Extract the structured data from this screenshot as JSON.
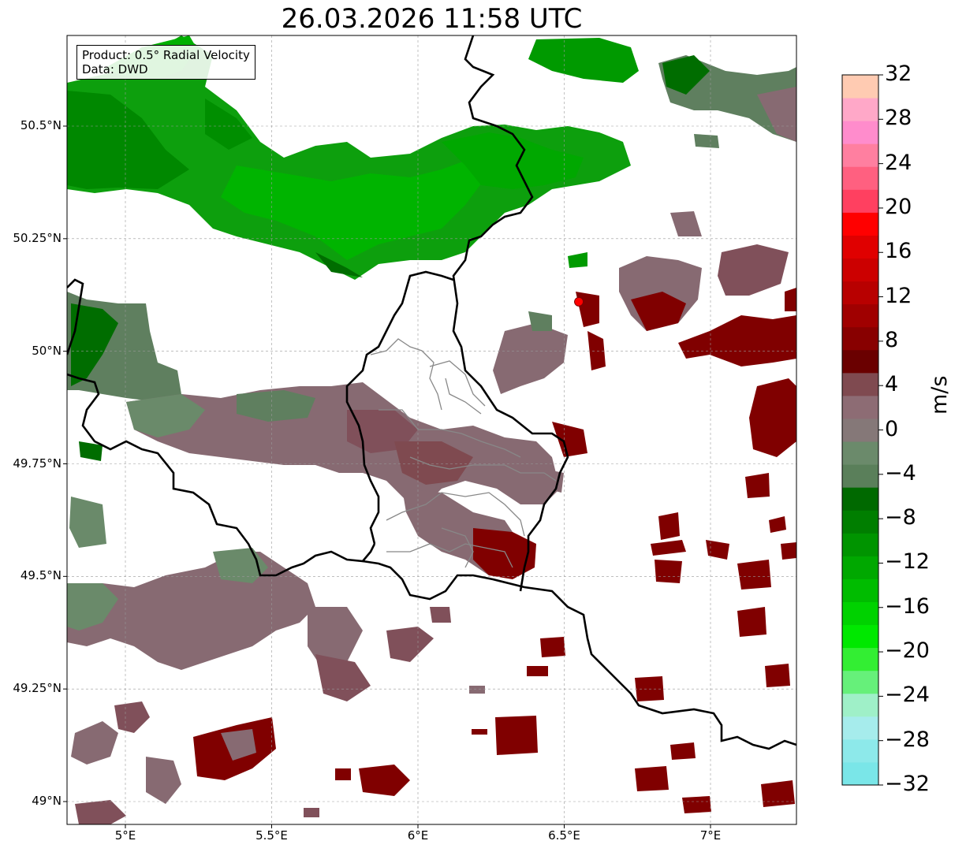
{
  "title": "26.03.2026 11:58 UTC",
  "info": {
    "product": "Product: 0.5° Radial Velocity",
    "data": "Data: DWD"
  },
  "lat_ticks": [
    {
      "label": "50.5°N",
      "value": 50.5
    },
    {
      "label": "50.25°N",
      "value": 50.25
    },
    {
      "label": "50°N",
      "value": 50.0
    },
    {
      "label": "49.75°N",
      "value": 49.75
    },
    {
      "label": "49.5°N",
      "value": 49.5
    },
    {
      "label": "49.25°N",
      "value": 49.25
    },
    {
      "label": "49°N",
      "value": 49.0
    }
  ],
  "lon_ticks": [
    {
      "label": "5°E",
      "value": 5.0
    },
    {
      "label": "5.5°E",
      "value": 5.5
    },
    {
      "label": "6°E",
      "value": 6.0
    },
    {
      "label": "6.5°E",
      "value": 6.5
    },
    {
      "label": "7°E",
      "value": 7.0
    }
  ],
  "extent": {
    "lon_min": 4.8,
    "lon_max": 7.3,
    "lat_min": 48.95,
    "lat_max": 50.7
  },
  "radar_site": {
    "lon": 6.55,
    "lat": 50.11,
    "color": "#ff0000"
  },
  "colorbar": {
    "unit": "m/s",
    "min": -32,
    "max": 32,
    "tick_labels": [
      "32",
      "28",
      "24",
      "20",
      "16",
      "12",
      "8",
      "4",
      "0",
      "−4",
      "−8",
      "−12",
      "−16",
      "−20",
      "−24",
      "−28",
      "−32"
    ],
    "colors_bottom_to_top": [
      "#7ae6e8",
      "#8de9ea",
      "#a6ecec",
      "#9ff0c8",
      "#66f07a",
      "#33ee33",
      "#00e800",
      "#00d200",
      "#00bc00",
      "#00a800",
      "#009400",
      "#007e00",
      "#006900",
      "#5a7f5a",
      "#6b8a6b",
      "#857878",
      "#8d6c74",
      "#7f4a50",
      "#6a0000",
      "#880000",
      "#a00000",
      "#b80000",
      "#cc0000",
      "#e00000",
      "#ff0000",
      "#ff4060",
      "#ff6080",
      "#ff7fa0",
      "#ff8ccc",
      "#ffa8c8",
      "#ffcbb2"
    ]
  },
  "colors": {
    "inbound_strong": "#009a00",
    "inbound_dark": "#006d00",
    "near_zero_green": "#5f7f5f",
    "near_zero_pink": "#876a72",
    "outbound": "#800000",
    "border_national": "#000000",
    "border_regional": "#888888"
  },
  "velocity_areas": [
    {
      "name": "north-band",
      "value": -10,
      "lon0": 4.8,
      "lon1": 5.5,
      "lat0": 50.27,
      "lat1": 50.65
    },
    {
      "name": "north-belt",
      "value": -12,
      "lon0": 5.5,
      "lon1": 6.75,
      "lat0": 50.2,
      "lat1": 50.5
    },
    {
      "name": "north-top",
      "value": -10,
      "lon0": 6.2,
      "lon1": 6.8,
      "lat0": 50.55,
      "lat1": 50.7
    },
    {
      "name": "ne-corner",
      "value": -2,
      "lon0": 6.85,
      "lon1": 7.3,
      "lat0": 50.5,
      "lat1": 50.65
    },
    {
      "name": "west-edge",
      "value": -6,
      "lon0": 4.8,
      "lon1": 5.1,
      "lat0": 49.95,
      "lat1": 50.1
    },
    {
      "name": "mid-band-west",
      "value": -2,
      "lon0": 4.95,
      "lon1": 5.6,
      "lat0": 49.75,
      "lat1": 49.95
    },
    {
      "name": "mid-band-center",
      "value": 2,
      "lon0": 5.6,
      "lon1": 6.5,
      "lat0": 49.6,
      "lat1": 49.9
    },
    {
      "name": "lux-south",
      "value": 5,
      "lon0": 6.0,
      "lon1": 6.4,
      "lat0": 49.5,
      "lat1": 49.65
    },
    {
      "name": "east-outbound",
      "value": 9,
      "lon0": 6.75,
      "lon1": 7.3,
      "lat0": 49.95,
      "lat1": 50.2
    },
    {
      "name": "sw-band",
      "value": 2,
      "lon0": 4.8,
      "lon1": 5.7,
      "lat0": 49.3,
      "lat1": 49.55
    },
    {
      "name": "sw-cells",
      "value": 3,
      "lon0": 4.8,
      "lon1": 5.5,
      "lat0": 48.95,
      "lat1": 49.15
    }
  ]
}
